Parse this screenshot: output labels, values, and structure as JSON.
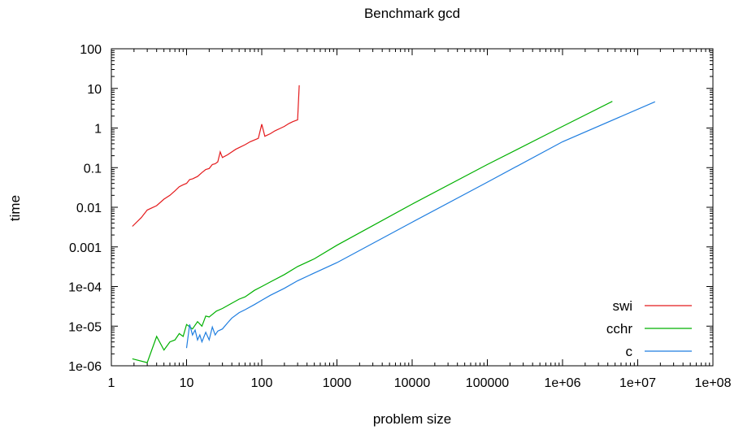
{
  "chart_data": {
    "type": "line",
    "title": "Benchmark gcd",
    "xlabel": "problem size",
    "ylabel": "time",
    "x_scale": "log",
    "y_scale": "log",
    "xlim": [
      1,
      100000000
    ],
    "ylim": [
      1e-06,
      100
    ],
    "x_ticks": [
      {
        "value": 1,
        "label": "1"
      },
      {
        "value": 10,
        "label": "10"
      },
      {
        "value": 100,
        "label": "100"
      },
      {
        "value": 1000,
        "label": "1000"
      },
      {
        "value": 10000,
        "label": "10000"
      },
      {
        "value": 100000,
        "label": "100000"
      },
      {
        "value": 1000000,
        "label": "1e+06"
      },
      {
        "value": 10000000,
        "label": "1e+07"
      },
      {
        "value": 100000000,
        "label": "1e+08"
      }
    ],
    "y_ticks": [
      {
        "value": 1e-06,
        "label": "1e-06"
      },
      {
        "value": 1e-05,
        "label": "1e-05"
      },
      {
        "value": 0.0001,
        "label": "1e-04"
      },
      {
        "value": 0.001,
        "label": "0.001"
      },
      {
        "value": 0.01,
        "label": "0.01"
      },
      {
        "value": 0.1,
        "label": "0.1"
      },
      {
        "value": 1,
        "label": "1"
      },
      {
        "value": 10,
        "label": "10"
      },
      {
        "value": 100,
        "label": "100"
      }
    ],
    "grid": false,
    "legend_position": "bottom-right",
    "series": [
      {
        "name": "swi",
        "color": "#e41a1c",
        "points": [
          [
            1.9,
            0.0033
          ],
          [
            2.5,
            0.0055
          ],
          [
            3,
            0.0085
          ],
          [
            4,
            0.011
          ],
          [
            5,
            0.016
          ],
          [
            6,
            0.02
          ],
          [
            7,
            0.026
          ],
          [
            8,
            0.033
          ],
          [
            9,
            0.037
          ],
          [
            10,
            0.04
          ],
          [
            11,
            0.05
          ],
          [
            12,
            0.052
          ],
          [
            14,
            0.06
          ],
          [
            16,
            0.075
          ],
          [
            18,
            0.09
          ],
          [
            20,
            0.095
          ],
          [
            22,
            0.12
          ],
          [
            24,
            0.125
          ],
          [
            26,
            0.14
          ],
          [
            28,
            0.25
          ],
          [
            30,
            0.18
          ],
          [
            35,
            0.21
          ],
          [
            40,
            0.25
          ],
          [
            45,
            0.29
          ],
          [
            50,
            0.32
          ],
          [
            60,
            0.38
          ],
          [
            70,
            0.45
          ],
          [
            80,
            0.5
          ],
          [
            90,
            0.55
          ],
          [
            100,
            1.25
          ],
          [
            110,
            0.62
          ],
          [
            130,
            0.72
          ],
          [
            150,
            0.85
          ],
          [
            180,
            1.0
          ],
          [
            200,
            1.1
          ],
          [
            230,
            1.3
          ],
          [
            260,
            1.45
          ],
          [
            300,
            1.6
          ],
          [
            315,
            12
          ]
        ]
      },
      {
        "name": "cchr",
        "color": "#00b000",
        "points": [
          [
            1.9,
            1.5e-06
          ],
          [
            3,
            1.2e-06
          ],
          [
            4,
            5.5e-06
          ],
          [
            5,
            2.5e-06
          ],
          [
            6,
            4e-06
          ],
          [
            7,
            4.5e-06
          ],
          [
            8,
            6.5e-06
          ],
          [
            9,
            5.5e-06
          ],
          [
            10,
            1.1e-05
          ],
          [
            12,
            8.5e-06
          ],
          [
            14,
            1.3e-05
          ],
          [
            16,
            1e-05
          ],
          [
            18,
            1.8e-05
          ],
          [
            20,
            1.7e-05
          ],
          [
            25,
            2.4e-05
          ],
          [
            30,
            2.8e-05
          ],
          [
            40,
            3.8e-05
          ],
          [
            50,
            4.8e-05
          ],
          [
            60,
            5.5e-05
          ],
          [
            80,
            8e-05
          ],
          [
            100,
            0.0001
          ],
          [
            130,
            0.00013
          ],
          [
            200,
            0.0002
          ],
          [
            300,
            0.00032
          ],
          [
            500,
            0.0005
          ],
          [
            1000,
            0.0011
          ],
          [
            10000,
            0.012
          ],
          [
            100000,
            0.12
          ],
          [
            1000000,
            1.1
          ],
          [
            4600000,
            4.7
          ]
        ]
      },
      {
        "name": "c",
        "color": "#1f7ee0",
        "points": [
          [
            10,
            2.8e-06
          ],
          [
            11,
            1.1e-05
          ],
          [
            12,
            6e-06
          ],
          [
            13,
            8e-06
          ],
          [
            14,
            4.5e-06
          ],
          [
            15,
            6e-06
          ],
          [
            16,
            4e-06
          ],
          [
            18,
            7e-06
          ],
          [
            20,
            4.5e-06
          ],
          [
            22,
            9.5e-06
          ],
          [
            24,
            6e-06
          ],
          [
            26,
            7.5e-06
          ],
          [
            30,
            8.5e-06
          ],
          [
            35,
            1.2e-05
          ],
          [
            40,
            1.6e-05
          ],
          [
            50,
            2.2e-05
          ],
          [
            60,
            2.6e-05
          ],
          [
            80,
            3.5e-05
          ],
          [
            100,
            4.5e-05
          ],
          [
            130,
            6e-05
          ],
          [
            200,
            9e-05
          ],
          [
            300,
            0.00014
          ],
          [
            500,
            0.00022
          ],
          [
            1000,
            0.0004
          ],
          [
            10000,
            0.0042
          ],
          [
            100000,
            0.043
          ],
          [
            1000000,
            0.45
          ],
          [
            17000000,
            4.6
          ]
        ]
      }
    ]
  }
}
